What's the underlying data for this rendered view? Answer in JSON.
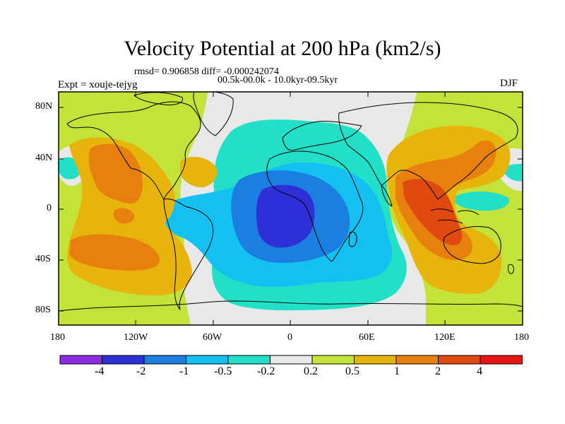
{
  "figure": {
    "title": "Velocity Potential at 200 hPa (km2/s)",
    "stats_line": "rmsd= 0.906858 diff= -0.000242074",
    "period_line": "00.5k-00.0k - 10.0kyr-09.5kyr",
    "experiment": "Expt = xouje-tejyg",
    "season": "DJF"
  },
  "map": {
    "lat_ticks": [
      "80N",
      "40N",
      "0",
      "40S",
      "80S"
    ],
    "lon_ticks": [
      "180",
      "120W",
      "60W",
      "0",
      "60E",
      "120E",
      "180"
    ],
    "land_outline_color": "#000000"
  },
  "colorbar": {
    "labels": [
      "-4",
      "-2",
      "-1",
      "-0.5",
      "-0.2",
      "0.2",
      "0.5",
      "1",
      "2",
      "4"
    ],
    "colors": [
      "#8b2be2",
      "#2f2fd8",
      "#1a7fe0",
      "#14c0f0",
      "#22e0c8",
      "#e8e8e8",
      "#c3e23a",
      "#e6b40a",
      "#e88010",
      "#e04a10",
      "#e81414"
    ]
  }
}
